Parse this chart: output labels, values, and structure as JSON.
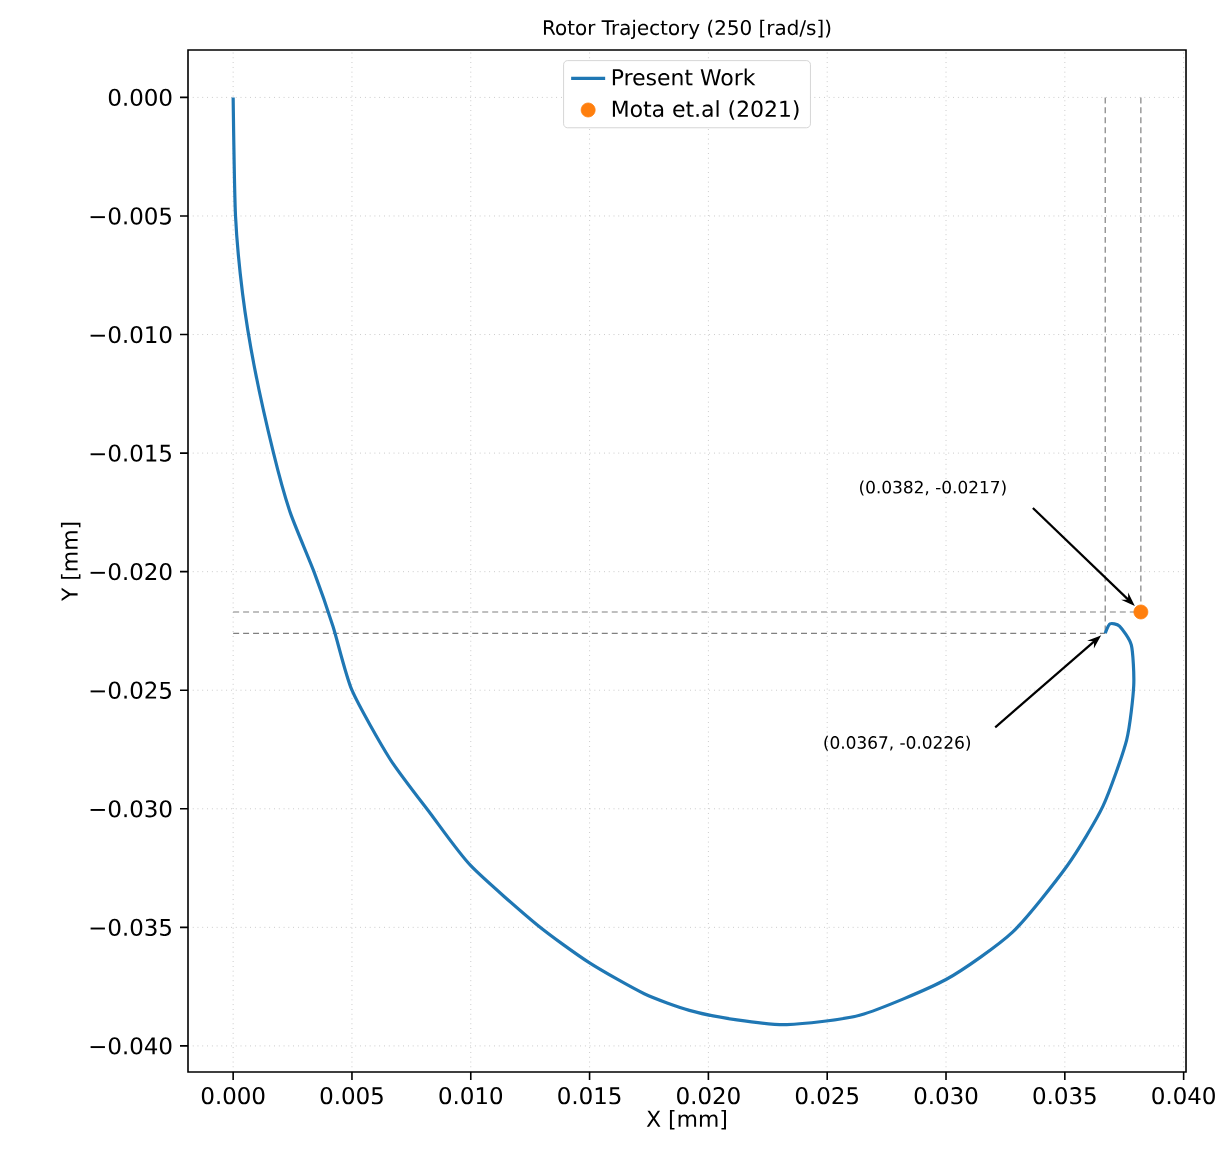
{
  "chart_data": {
    "type": "line",
    "title": "Rotor Trajectory (250 [rad/s])",
    "xlabel": "X [mm]",
    "ylabel": "Y [mm]",
    "series": [
      {
        "name": "Present Work",
        "color": "#1f77b4",
        "marker": "none",
        "line_style": "solid",
        "x": [
          0,
          0.0001,
          0.0004,
          0.0009,
          0.0017,
          0.0024,
          0.0034,
          0.0042,
          0.005,
          0.0066,
          0.0083,
          0.01,
          0.0128,
          0.015,
          0.0173,
          0.0192,
          0.0212,
          0.0233,
          0.0264,
          0.03,
          0.0328,
          0.0351,
          0.0366,
          0.0376,
          0.0379,
          0.0378,
          0.0373,
          0.0369,
          0.0367
        ],
        "values": [
          0,
          -0.005,
          -0.0083,
          -0.0114,
          -0.015,
          -0.0175,
          -0.02,
          -0.0223,
          -0.025,
          -0.0279,
          -0.0302,
          -0.0324,
          -0.0349,
          -0.0365,
          -0.0378,
          -0.0385,
          -0.0389,
          -0.0391,
          -0.0387,
          -0.0372,
          -0.0352,
          -0.0324,
          -0.0299,
          -0.0271,
          -0.0248,
          -0.0231,
          -0.0223,
          -0.0222,
          -0.0226
        ]
      },
      {
        "name": "Mota et.al (2021)",
        "type": "scatter",
        "color": "#ff7f0e",
        "marker": "circle",
        "x": [
          0.0382
        ],
        "values": [
          -0.0217
        ]
      }
    ],
    "xlim": [
      -0.0019,
      0.0401
    ],
    "ylim": [
      -0.0411,
      0.002
    ],
    "xticks": [
      {
        "value": 0,
        "label": "0.000"
      },
      {
        "value": 0.005,
        "label": "0.005"
      },
      {
        "value": 0.01,
        "label": "0.010"
      },
      {
        "value": 0.015,
        "label": "0.015"
      },
      {
        "value": 0.02,
        "label": "0.020"
      },
      {
        "value": 0.025,
        "label": "0.025"
      },
      {
        "value": 0.03,
        "label": "0.030"
      },
      {
        "value": 0.035,
        "label": "0.035"
      },
      {
        "value": 0.04,
        "label": "0.040"
      }
    ],
    "yticks": [
      {
        "value": 0,
        "label": "0.000"
      },
      {
        "value": -0.005,
        "label": "−0.005"
      },
      {
        "value": -0.01,
        "label": "−0.010"
      },
      {
        "value": -0.015,
        "label": "−0.015"
      },
      {
        "value": -0.02,
        "label": "−0.020"
      },
      {
        "value": -0.025,
        "label": "−0.025"
      },
      {
        "value": -0.03,
        "label": "−0.030"
      },
      {
        "value": -0.035,
        "label": "−0.035"
      },
      {
        "value": -0.04,
        "label": "−0.040"
      }
    ],
    "ref_lines": [
      {
        "axis": "x",
        "value": 0.0382,
        "color": "#808080",
        "line_style": "dashed"
      },
      {
        "axis": "y",
        "value": -0.0217,
        "color": "#808080",
        "line_style": "dashed"
      },
      {
        "axis": "x",
        "value": 0.0367,
        "color": "#808080",
        "line_style": "dashed"
      },
      {
        "axis": "y",
        "value": -0.0226,
        "color": "#808080",
        "line_style": "dashed"
      }
    ],
    "annotations": [
      "(0.0382, -0.0217)",
      "(0.0367, -0.0226)"
    ],
    "grid": true,
    "legend": "top"
  }
}
